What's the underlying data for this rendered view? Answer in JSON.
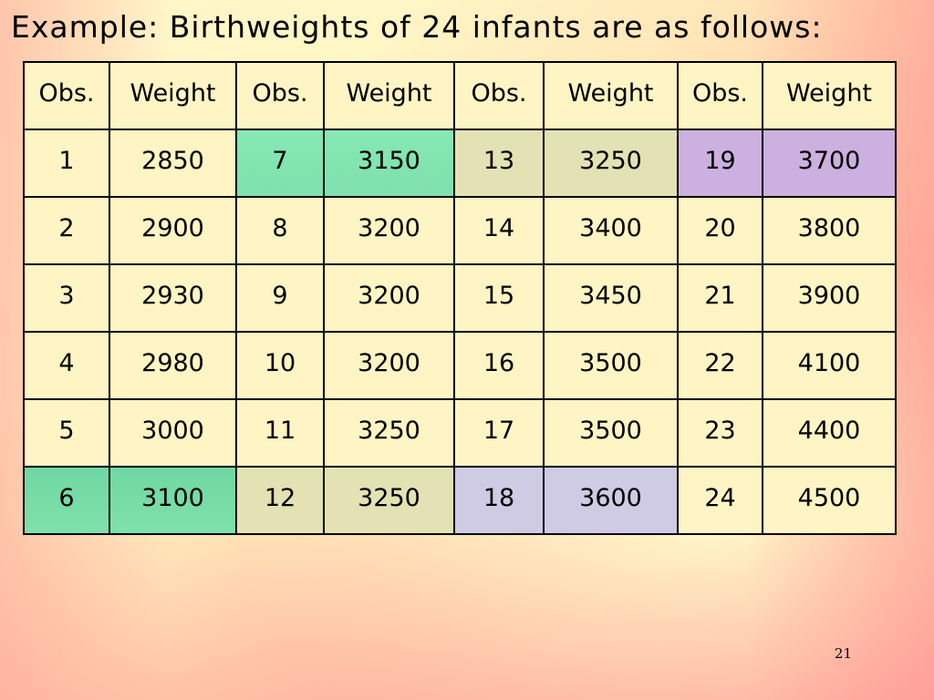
{
  "title": "Example: Birthweights of 24 infants are as follows:",
  "page_number": "21",
  "table": {
    "headers": [
      "Obs.",
      "Weight",
      "Obs.",
      "Weight",
      "Obs.",
      "Weight",
      "Obs.",
      "Weight"
    ],
    "rows": [
      [
        "1",
        "2850",
        "7",
        "3150",
        "13",
        "3250",
        "19",
        "3700"
      ],
      [
        "2",
        "2900",
        "8",
        "3200",
        "14",
        "3400",
        "20",
        "3800"
      ],
      [
        "3",
        "2930",
        "9",
        "3200",
        "15",
        "3450",
        "21",
        "3900"
      ],
      [
        "4",
        "2980",
        "10",
        "3200",
        "16",
        "3500",
        "22",
        "4100"
      ],
      [
        "5",
        "3000",
        "11",
        "3250",
        "17",
        "3500",
        "23",
        "4400"
      ],
      [
        "6",
        "3100",
        "12",
        "3250",
        "18",
        "3600",
        "24",
        "4500"
      ]
    ]
  },
  "highlight_colors": {
    "green": "#80e2ae",
    "olive": "#e2e2b4",
    "lavender": "#cfcbe4",
    "purple": "#ccb0e0",
    "cell_default": "#fff5c4"
  }
}
